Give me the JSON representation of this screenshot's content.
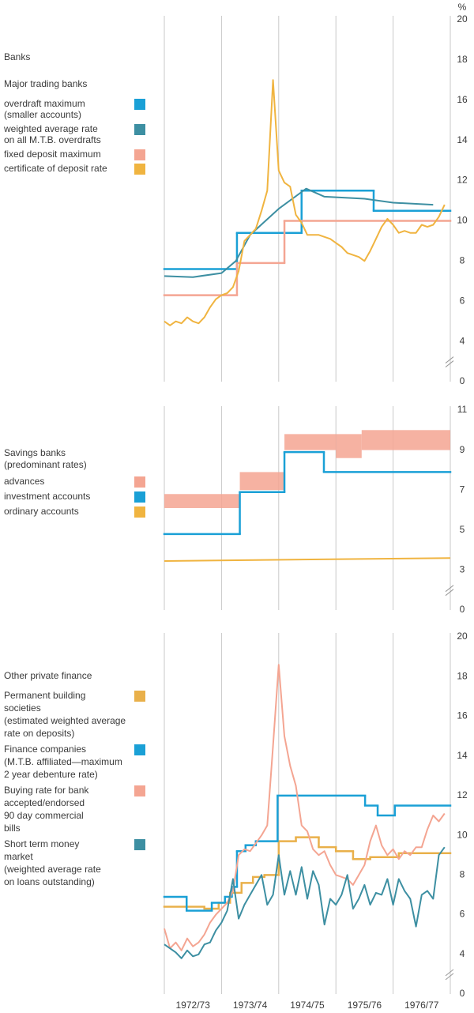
{
  "chart_data": [
    {
      "type": "line",
      "title": "Banks",
      "subtitle": "Major trading banks",
      "unit": "%",
      "xlim": [
        1972.5,
        1977.5
      ],
      "xgrid": [
        1972.5,
        1973.5,
        1974.5,
        1975.5,
        1976.5,
        1977.5
      ],
      "ylim": [
        2,
        20
      ],
      "yticks": [
        4,
        6,
        8,
        10,
        12,
        14,
        16,
        18,
        20
      ],
      "y_floor": 0,
      "x": [
        1972.5,
        1972.6,
        1972.7,
        1972.8,
        1972.9,
        1973.0,
        1973.1,
        1973.2,
        1973.3,
        1973.4,
        1973.5,
        1973.6,
        1973.7,
        1973.8,
        1973.9,
        1974.0,
        1974.1,
        1974.2,
        1974.3,
        1974.4,
        1974.5,
        1974.6,
        1974.7,
        1974.8,
        1974.9,
        1975.0,
        1975.1,
        1975.2,
        1975.3,
        1975.4,
        1975.5,
        1975.6,
        1975.7,
        1975.8,
        1975.9,
        1976.0,
        1976.1,
        1976.2,
        1976.3,
        1976.4,
        1976.5,
        1976.6,
        1976.7,
        1976.8,
        1976.9,
        1977.0,
        1977.1,
        1977.2,
        1977.3,
        1977.4
      ],
      "series": [
        {
          "name": [
            "overdraft maximum",
            "(smaller accounts)"
          ],
          "color": "#1aa0d6",
          "step": true,
          "x": [
            1972.5,
            1973.77,
            1974.9,
            1976.16
          ],
          "values": [
            7.6,
            9.4,
            11.5,
            10.5
          ]
        },
        {
          "name": [
            "weighted average rate",
            "on all M.T.B. overdrafts"
          ],
          "color": "#3d8fa2",
          "x": [
            1972.5,
            1973.0,
            1973.5,
            1973.75,
            1974.0,
            1974.5,
            1974.98,
            1975.3,
            1976.0,
            1976.5,
            1977.2
          ],
          "values": [
            7.25,
            7.2,
            7.4,
            8.0,
            9.3,
            10.6,
            11.6,
            11.2,
            11.1,
            10.9,
            10.8
          ]
        },
        {
          "name": [
            "fixed deposit maximum"
          ],
          "color": "#f4a592",
          "step": true,
          "x": [
            1972.5,
            1973.77,
            1974.6
          ],
          "values": [
            6.3,
            7.9,
            10.0
          ]
        },
        {
          "name": [
            "certificate of deposit rate"
          ],
          "color": "#f0b440",
          "values": [
            5.0,
            4.8,
            5.0,
            4.9,
            5.2,
            5.0,
            4.9,
            5.2,
            5.7,
            6.1,
            6.3,
            6.4,
            6.7,
            7.5,
            9.0,
            9.3,
            9.6,
            10.5,
            11.5,
            17.0,
            12.5,
            11.9,
            11.7,
            10.3,
            9.9,
            9.3,
            9.3,
            9.3,
            9.2,
            9.1,
            8.9,
            8.7,
            8.4,
            8.3,
            8.2,
            8.0,
            8.5,
            9.1,
            9.7,
            10.1,
            9.8,
            9.4,
            9.5,
            9.4,
            9.4,
            9.8,
            9.7,
            9.8,
            10.2,
            10.8
          ]
        }
      ]
    },
    {
      "type": "line",
      "title": "Savings banks",
      "subtitle": "(predominant rates)",
      "xlim": [
        1972.5,
        1977.5
      ],
      "xgrid": [
        1972.5,
        1973.5,
        1974.5,
        1975.5,
        1976.5,
        1977.5
      ],
      "ylim": [
        1,
        11
      ],
      "yticks": [
        3,
        5,
        7,
        9,
        11
      ],
      "y_floor": 0,
      "series": [
        {
          "name": [
            "advances"
          ],
          "color": "#f4a592",
          "band": true,
          "x": [
            1972.5,
            1973.82,
            1974.6,
            1975.5,
            1975.95
          ],
          "low": [
            6.1,
            7.0,
            9.0,
            8.6,
            9.0
          ],
          "high": [
            6.8,
            7.9,
            9.8,
            9.8,
            10.0
          ]
        },
        {
          "name": [
            "investment accounts"
          ],
          "color": "#1aa0d6",
          "step": true,
          "x": [
            1972.5,
            1973.82,
            1974.6,
            1975.29
          ],
          "values": [
            4.8,
            6.9,
            8.9,
            7.9
          ]
        },
        {
          "name": [
            "ordinary accounts"
          ],
          "color": "#f0b440",
          "x": [
            1972.5,
            1977.5
          ],
          "values": [
            3.45,
            3.6
          ]
        }
      ]
    },
    {
      "type": "line",
      "title": "Other private finance",
      "xlim": [
        1972.5,
        1977.5
      ],
      "xgrid": [
        1972.5,
        1973.5,
        1974.5,
        1975.5,
        1976.5,
        1977.5
      ],
      "xticks": [
        {
          "value": 1973.0,
          "label": "1972/73"
        },
        {
          "value": 1974.0,
          "label": "1973/74"
        },
        {
          "value": 1975.0,
          "label": "1974/75"
        },
        {
          "value": 1976.0,
          "label": "1975/76"
        },
        {
          "value": 1977.0,
          "label": "1976/77"
        }
      ],
      "ylim": [
        2,
        20
      ],
      "yticks": [
        4,
        6,
        8,
        10,
        12,
        14,
        16,
        18,
        20
      ],
      "y_floor": 0,
      "x": [
        1972.5,
        1972.6,
        1972.7,
        1972.8,
        1972.9,
        1973.0,
        1973.1,
        1973.2,
        1973.3,
        1973.4,
        1973.5,
        1973.6,
        1973.7,
        1973.8,
        1973.9,
        1974.0,
        1974.1,
        1974.2,
        1974.3,
        1974.4,
        1974.5,
        1974.6,
        1974.7,
        1974.8,
        1974.9,
        1975.0,
        1975.1,
        1975.2,
        1975.3,
        1975.4,
        1975.5,
        1975.6,
        1975.7,
        1975.8,
        1975.9,
        1976.0,
        1976.1,
        1976.2,
        1976.3,
        1976.4,
        1976.5,
        1976.6,
        1976.7,
        1976.8,
        1976.9,
        1977.0,
        1977.1,
        1977.2,
        1977.3,
        1977.4
      ],
      "series": [
        {
          "name": [
            "Permanent building",
            "societies",
            "(estimated weighted average",
            "rate on deposits)"
          ],
          "color": "#e9b04a",
          "step": true,
          "x": [
            1972.5,
            1973.2,
            1973.45,
            1973.65,
            1973.85,
            1974.05,
            1974.25,
            1974.5,
            1974.8,
            1975.2,
            1975.5,
            1975.8,
            1976.1,
            1976.6
          ],
          "values": [
            6.4,
            6.3,
            6.6,
            7.1,
            7.6,
            7.9,
            8.0,
            9.7,
            9.9,
            9.4,
            9.2,
            8.8,
            8.9,
            9.1
          ]
        },
        {
          "name": [
            "Finance companies",
            "(M.T.B. affiliated—maximum",
            "2 year debenture rate)"
          ],
          "color": "#1aa0d6",
          "step": true,
          "x": [
            1972.5,
            1972.89,
            1973.33,
            1973.56,
            1973.68,
            1973.77,
            1973.92,
            1974.1,
            1974.48,
            1976.01,
            1976.23,
            1976.53
          ],
          "values": [
            6.9,
            6.2,
            6.6,
            6.9,
            7.4,
            9.2,
            9.5,
            9.7,
            12.0,
            11.5,
            11.0,
            11.5
          ]
        },
        {
          "name": [
            "Buying rate for bank",
            "accepted/endorsed",
            "90 day commercial",
            "bills"
          ],
          "color": "#f4a592",
          "values": [
            5.3,
            4.3,
            4.6,
            4.2,
            4.8,
            4.4,
            4.6,
            5.0,
            5.6,
            6.0,
            6.3,
            6.6,
            7.2,
            9.0,
            9.3,
            9.2,
            9.6,
            10.0,
            10.5,
            14.5,
            18.6,
            15.0,
            13.5,
            12.5,
            10.5,
            10.2,
            9.3,
            9.0,
            9.2,
            8.5,
            8.0,
            7.9,
            7.8,
            7.5,
            8.0,
            8.5,
            9.7,
            10.5,
            9.5,
            9.0,
            9.3,
            8.8,
            9.2,
            9.0,
            9.4,
            9.4,
            10.3,
            11.0,
            10.7,
            11.1
          ]
        },
        {
          "name": [
            "Short term money",
            "market",
            "(weighted average rate",
            "on loans outstanding)"
          ],
          "color": "#3d8fa2",
          "values": [
            4.5,
            4.3,
            4.1,
            3.8,
            4.2,
            3.9,
            4.0,
            4.5,
            4.6,
            5.2,
            5.6,
            6.2,
            7.8,
            5.8,
            6.5,
            7.0,
            7.5,
            8.0,
            6.5,
            7.0,
            9.0,
            7.0,
            8.2,
            7.0,
            8.4,
            6.8,
            8.2,
            7.5,
            5.5,
            6.8,
            6.5,
            7.0,
            8.0,
            6.3,
            6.8,
            7.5,
            6.5,
            7.1,
            7.0,
            7.8,
            6.5,
            7.8,
            7.2,
            6.8,
            5.4,
            7.0,
            7.2,
            6.8,
            9.0,
            9.4
          ]
        }
      ]
    }
  ]
}
